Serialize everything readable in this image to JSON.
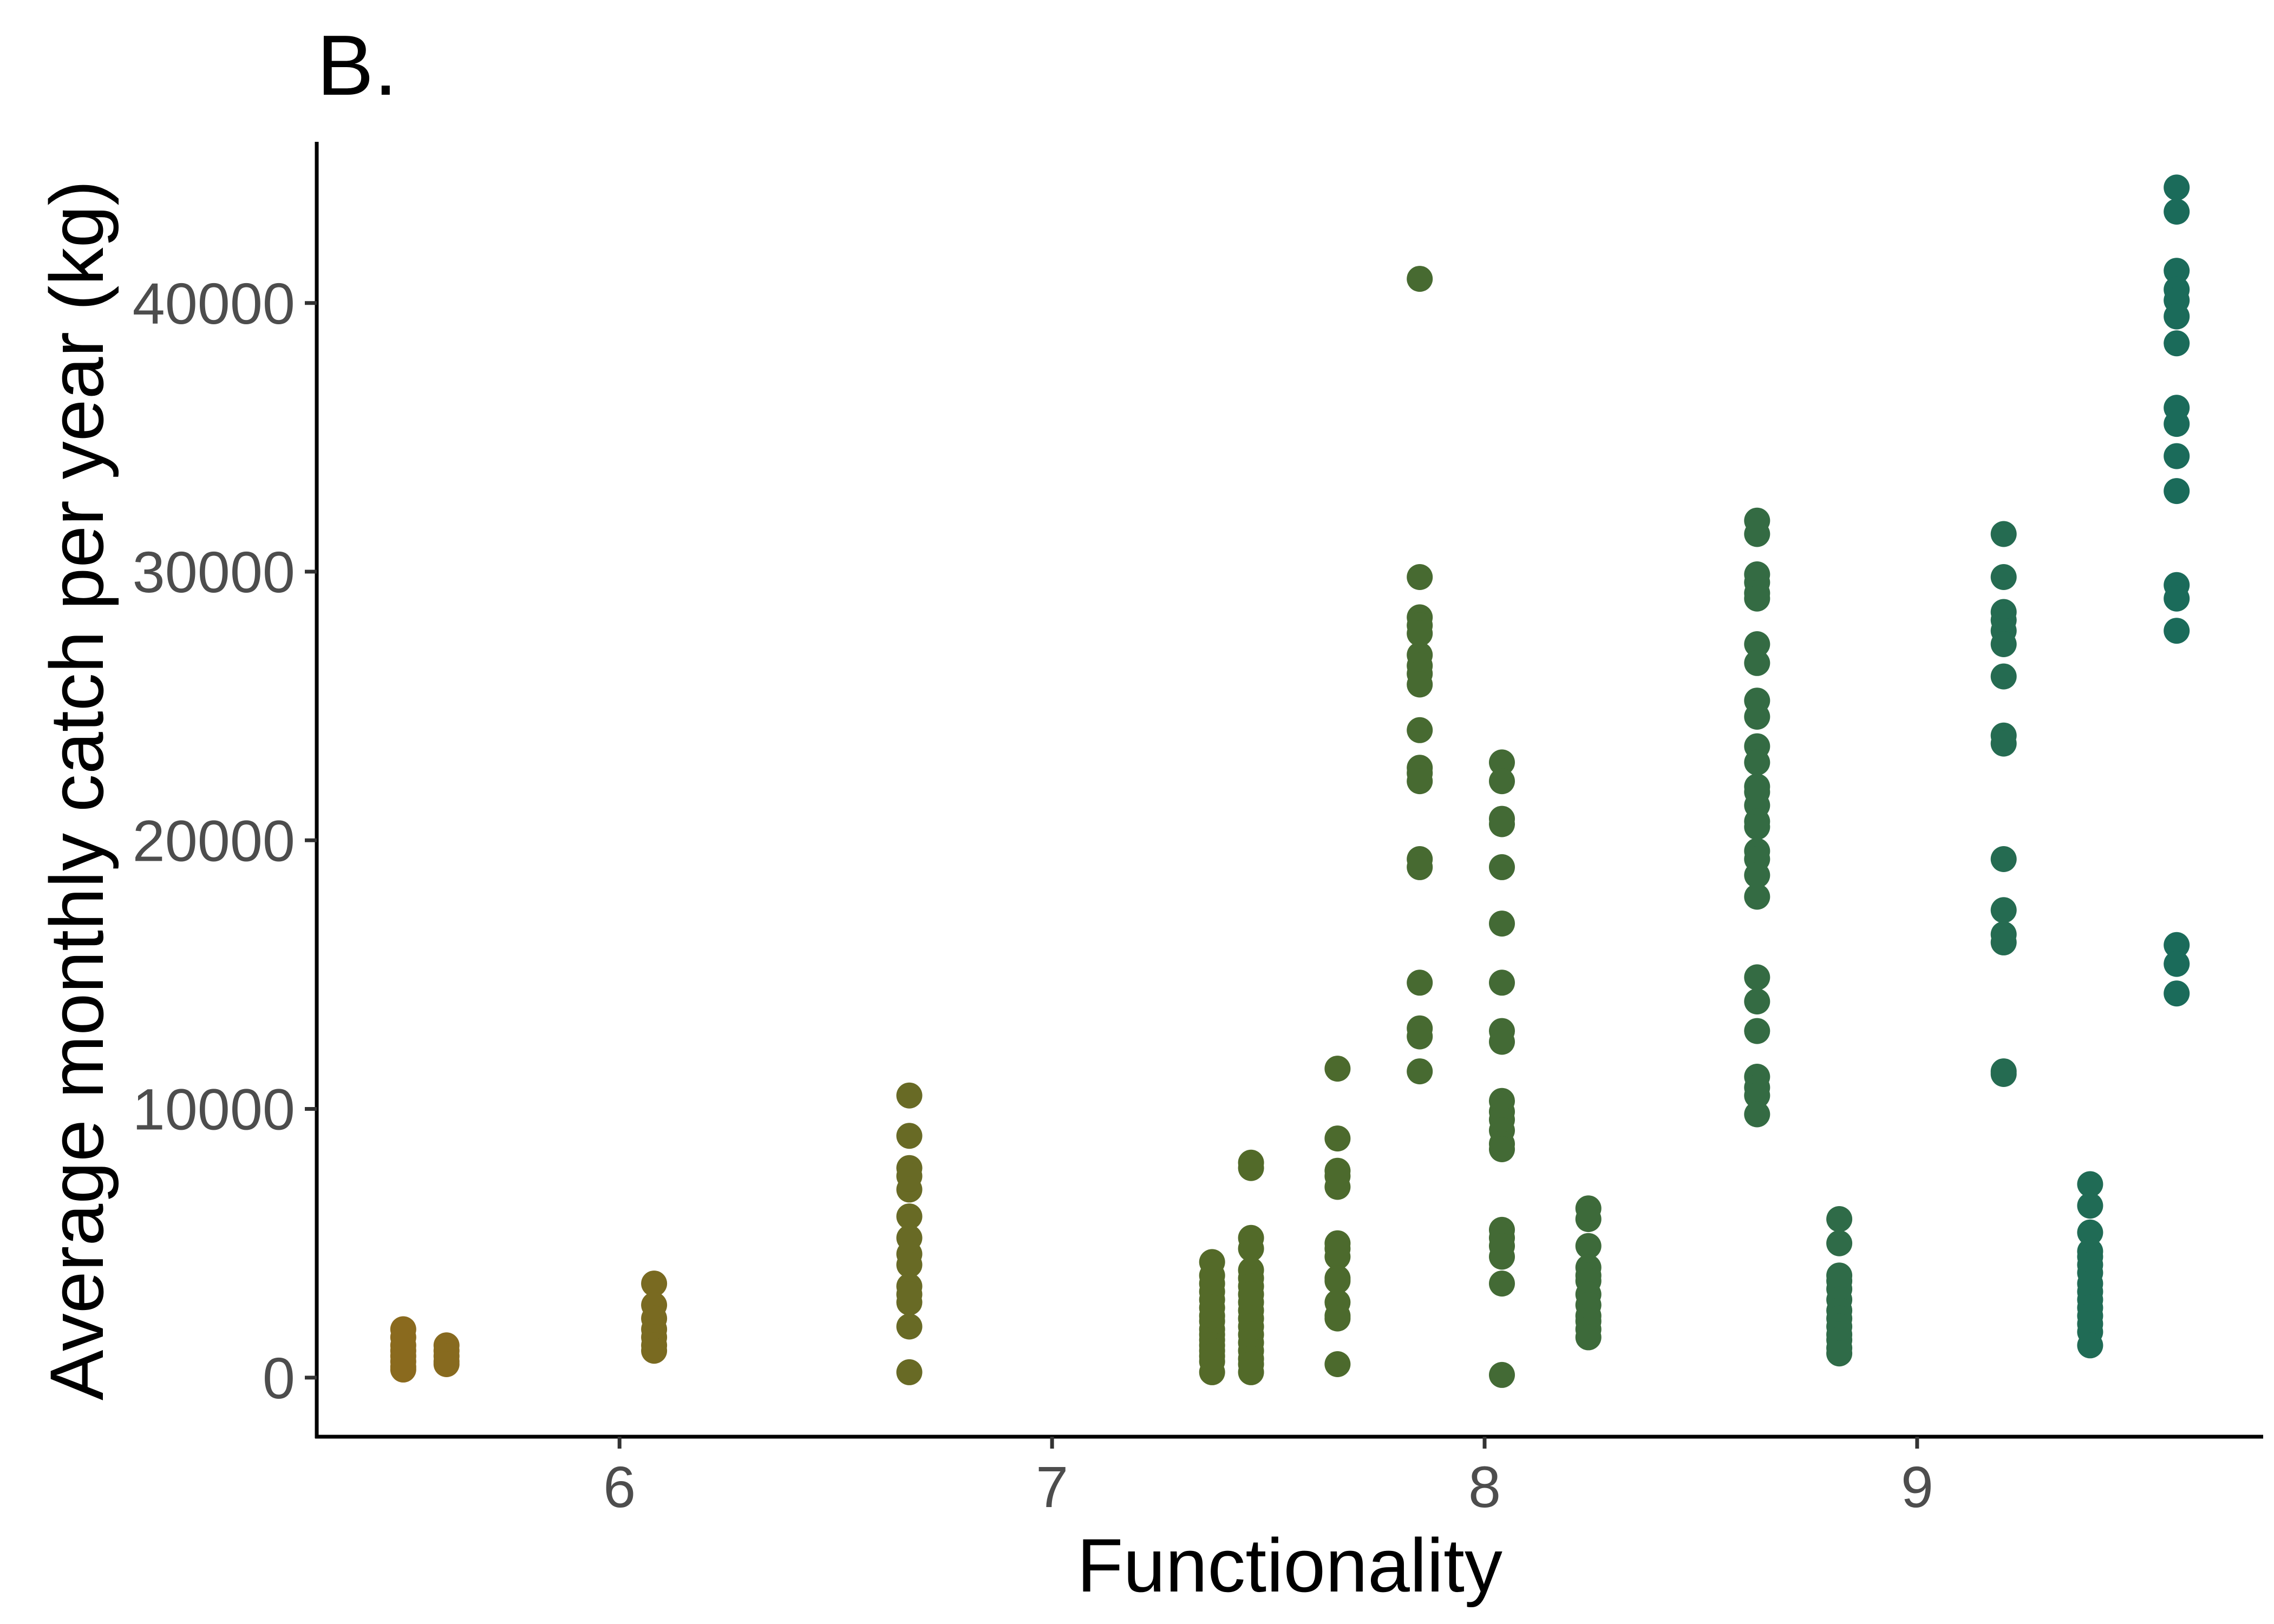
{
  "chart_data": {
    "type": "scatter",
    "title": "B.",
    "xlabel": "Functionality",
    "ylabel": "Average monthly catch per year (kg)",
    "xlim": [
      5.3,
      9.8
    ],
    "ylim": [
      -2200,
      46000
    ],
    "xticks": [
      6,
      7,
      8,
      9
    ],
    "yticks": [
      0,
      10000,
      20000,
      30000,
      40000
    ],
    "grid": false,
    "legend": "none",
    "color_scale": {
      "low": "#8a6a1e",
      "mid": "#4f6a2a",
      "high": "#1b6b5a"
    },
    "groups": [
      {
        "x": 5.5,
        "y": [
          1800,
          1500,
          1200,
          1000,
          800,
          600,
          400,
          300
        ]
      },
      {
        "x": 5.6,
        "y": [
          1200,
          1000,
          800,
          600,
          500
        ]
      },
      {
        "x": 6.08,
        "y": [
          3500,
          2700,
          2200,
          1800,
          1500,
          1200,
          1000
        ]
      },
      {
        "x": 6.67,
        "y": [
          10500,
          9000,
          7800,
          7500,
          7000,
          6000,
          5200,
          4600,
          4200,
          3400,
          3100,
          2800,
          1900,
          200
        ]
      },
      {
        "x": 7.37,
        "y": [
          4300,
          3800,
          3500,
          3200,
          2900,
          2600,
          2300,
          2100,
          1800,
          1600,
          1400,
          1200,
          1000,
          800,
          600,
          200
        ]
      },
      {
        "x": 7.46,
        "y": [
          8000,
          7800,
          5200,
          4800,
          4000,
          3700,
          3400,
          3100,
          2800,
          2500,
          2200,
          1900,
          1600,
          1300,
          1000,
          700,
          500,
          200
        ]
      },
      {
        "x": 7.66,
        "y": [
          11500,
          8900,
          7700,
          7500,
          7100,
          5000,
          4800,
          4500,
          3700,
          3600,
          2800,
          2300,
          2200,
          500
        ]
      },
      {
        "x": 7.85,
        "y": [
          40900,
          29800,
          28300,
          28000,
          27700,
          26900,
          26500,
          26200,
          25800,
          24100,
          22700,
          22500,
          22200,
          19300,
          19000,
          14700,
          13000,
          12700,
          11400
        ]
      },
      {
        "x": 8.04,
        "y": [
          22900,
          22200,
          20800,
          20600,
          19000,
          16900,
          14700,
          12900,
          12500,
          10300,
          9900,
          9600,
          9200,
          8700,
          8500,
          5500,
          5200,
          4900,
          4500,
          3500,
          100
        ]
      },
      {
        "x": 8.24,
        "y": [
          6300,
          5900,
          4900,
          4100,
          3800,
          3600,
          3100,
          2700,
          2300,
          2100,
          1800,
          1500
        ]
      },
      {
        "x": 8.63,
        "y": [
          31900,
          31400,
          29900,
          29600,
          29200,
          29000,
          27300,
          26600,
          25200,
          24600,
          23500,
          22900,
          22000,
          21800,
          21300,
          20700,
          20500,
          19600,
          19300,
          18700,
          17900,
          14900,
          14000,
          12900,
          11200,
          10800,
          10500,
          9800
        ]
      },
      {
        "x": 8.82,
        "y": [
          5900,
          5000,
          3800,
          3600,
          3300,
          2900,
          2500,
          2200,
          1900,
          1600,
          1400,
          1100,
          900
        ]
      },
      {
        "x": 9.2,
        "y": [
          31400,
          29800,
          28500,
          28200,
          27800,
          27300,
          26100,
          23900,
          23600,
          19300,
          17400,
          16500,
          16200,
          11400,
          11300
        ]
      },
      {
        "x": 9.4,
        "y": [
          7200,
          6400,
          5400,
          4700,
          4500,
          4200,
          3900,
          3500,
          3200,
          2900,
          2600,
          2300,
          2000,
          1700,
          1200
        ]
      },
      {
        "x": 9.6,
        "y": [
          44300,
          43400,
          41200,
          40500,
          40100,
          39500,
          38500,
          36100,
          35500,
          34300,
          33000,
          29500,
          29000,
          27800,
          16100,
          15400,
          14300
        ]
      }
    ]
  }
}
